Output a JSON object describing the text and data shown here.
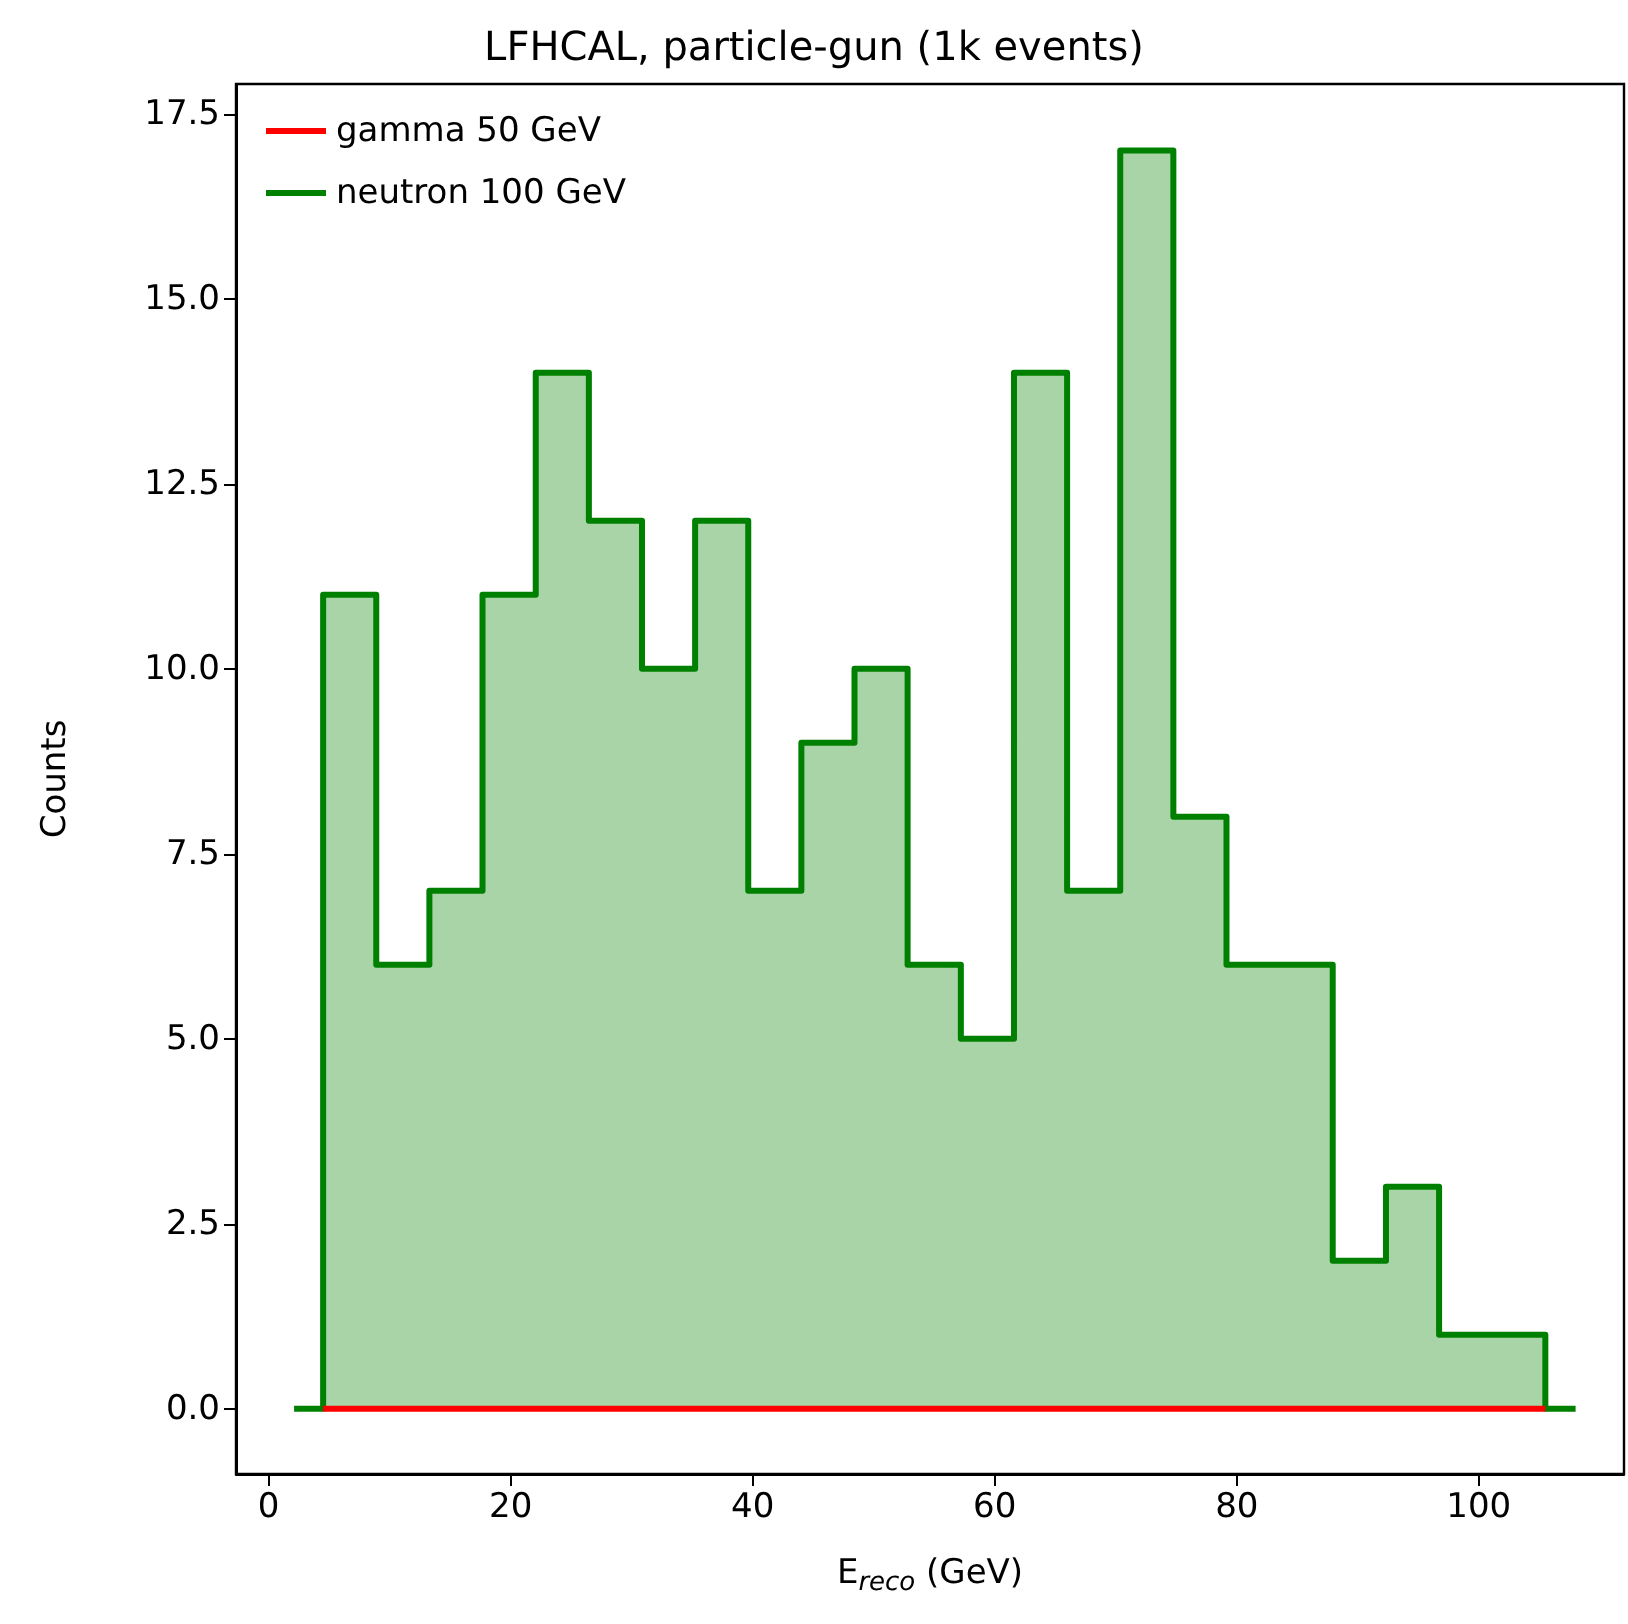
{
  "chart_data": {
    "type": "histogram",
    "title": "LFHCAL, particle-gun (1k events)",
    "xlabel": "E$_{reco}$ (GeV)",
    "ylabel": "Counts",
    "bins": [
      2.1,
      4.5,
      8.89,
      13.28,
      17.67,
      22.07,
      26.46,
      30.85,
      35.24,
      39.63,
      44.02,
      48.41,
      52.8,
      57.2,
      61.59,
      65.98,
      70.37,
      74.76,
      79.15,
      83.54,
      87.93,
      92.33,
      96.72,
      101.11,
      105.5,
      108.0
    ],
    "series": [
      {
        "name": "gamma 50 GeV",
        "color": "#ff0000",
        "bins": [
          4.5,
          105.5
        ],
        "values": [
          0
        ]
      },
      {
        "name": "neutron 100 GeV",
        "color": "#008000",
        "values": [
          0,
          11,
          6,
          7,
          11,
          14,
          12,
          10,
          12,
          7,
          9,
          10,
          6,
          5,
          14,
          7,
          17,
          8,
          6,
          6,
          2,
          3,
          1,
          1,
          0
        ]
      }
    ],
    "xlim": [
      -2.7,
      112
    ],
    "xticks": [
      0,
      20,
      40,
      60,
      80,
      100
    ],
    "ylim": [
      -0.88,
      17.9
    ],
    "yticks": [
      {
        "value": 0,
        "label": "0.0"
      },
      2.5,
      {
        "value": 5,
        "label": "5.0"
      },
      7.5,
      {
        "value": 10,
        "label": "10.0"
      },
      12.5,
      {
        "value": 15,
        "label": "15.0"
      },
      17.5
    ],
    "grid": false,
    "legend": "top left"
  }
}
